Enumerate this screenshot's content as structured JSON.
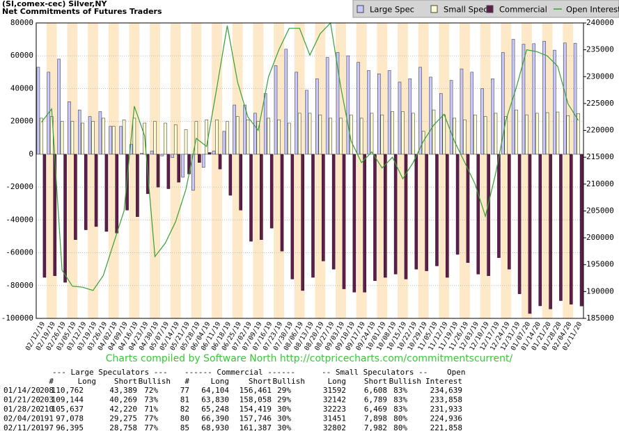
{
  "chart_data": {
    "type": "bar",
    "title": "(SI,comex-cec) Silver,NY",
    "subtitle": "Net Commitments of Futures Traders",
    "categories": [
      "02/12/19",
      "02/19/19",
      "02/26/19",
      "03/05/19",
      "03/12/19",
      "03/19/19",
      "03/26/19",
      "04/02/19",
      "04/09/19",
      "04/16/19",
      "04/23/19",
      "04/30/19",
      "05/07/19",
      "05/14/19",
      "05/21/19",
      "05/28/19",
      "06/04/19",
      "06/11/19",
      "06/18/19",
      "06/25/19",
      "07/02/19",
      "07/09/19",
      "07/16/19",
      "07/23/19",
      "07/30/19",
      "08/06/19",
      "08/13/19",
      "08/20/19",
      "08/27/19",
      "09/03/19",
      "09/10/19",
      "09/17/19",
      "09/24/19",
      "10/01/19",
      "10/08/19",
      "10/15/19",
      "10/22/19",
      "10/29/19",
      "11/05/19",
      "11/12/19",
      "11/19/19",
      "11/26/19",
      "12/03/19",
      "12/10/19",
      "12/17/19",
      "12/24/19",
      "12/31/19",
      "01/07/20",
      "01/14/20",
      "01/21/20",
      "01/28/20",
      "02/04/20",
      "02/11/20"
    ],
    "series": [
      {
        "name": "Large Spec",
        "color": "#c8c8ff",
        "values": [
          53000,
          50000,
          58000,
          32000,
          27000,
          23000,
          26000,
          17000,
          17000,
          6000,
          500,
          2000,
          -1000,
          -2000,
          -14000,
          -22000,
          -8000,
          2000,
          14000,
          30000,
          30000,
          25000,
          37000,
          54000,
          64000,
          50000,
          39000,
          46000,
          59000,
          62000,
          60000,
          56000,
          51000,
          49000,
          51000,
          44000,
          46000,
          53000,
          47000,
          37000,
          45000,
          52000,
          50000,
          40000,
          46000,
          62000,
          70000,
          67000,
          67373,
          68875,
          63417,
          67803,
          67637
        ]
      },
      {
        "name": "Small Spec",
        "color": "#ffffd2",
        "values": [
          22000,
          23000,
          20000,
          20000,
          19000,
          20000,
          22000,
          17000,
          21000,
          22000,
          19000,
          20000,
          19000,
          18000,
          15000,
          20000,
          21000,
          21000,
          20000,
          23000,
          21000,
          20000,
          22000,
          21000,
          19000,
          25000,
          25000,
          24000,
          22000,
          22000,
          24000,
          22000,
          25000,
          24000,
          26000,
          26000,
          25000,
          14000,
          27000,
          24000,
          22000,
          21000,
          24000,
          23000,
          25000,
          23000,
          27000,
          24000,
          24984,
          25353,
          25754,
          23553,
          24820
        ]
      },
      {
        "name": "Commercial",
        "color": "#5c1f4a",
        "values": [
          -75000,
          -74000,
          -78000,
          -52000,
          -46000,
          -44000,
          -47000,
          -48000,
          -34000,
          -38000,
          -24000,
          -20000,
          -21000,
          -17000,
          -12000,
          -5000,
          1000,
          -9000,
          -25000,
          -34000,
          -53000,
          -52000,
          -45000,
          -59000,
          -76000,
          -83000,
          -75000,
          -65000,
          -70000,
          -82000,
          -84000,
          -84000,
          -77000,
          -75000,
          -73000,
          -76000,
          -70000,
          -71000,
          -68000,
          -75000,
          -61000,
          -66000,
          -73000,
          -74000,
          -63000,
          -70000,
          -85000,
          -97000,
          -92357,
          -94228,
          -89171,
          -91356,
          -92457
        ]
      },
      {
        "name": "Open Interest",
        "color": "#33a033",
        "type": "line",
        "axis": "y2",
        "values": [
          221500,
          224000,
          194000,
          191000,
          190800,
          190200,
          193000,
          199000,
          205000,
          224500,
          219000,
          196500,
          199000,
          203000,
          209000,
          218500,
          217000,
          228000,
          239500,
          229000,
          222500,
          220000,
          230000,
          235000,
          239000,
          239000,
          234000,
          238000,
          240000,
          228000,
          218000,
          214000,
          216000,
          213000,
          215000,
          211000,
          214000,
          218000,
          221000,
          223000,
          218000,
          214000,
          210000,
          204000,
          212000,
          222000,
          228000,
          235000,
          234639,
          233858,
          231933,
          224936,
          221858
        ]
      }
    ],
    "ylim": [
      -100000,
      80000
    ],
    "yticks": [
      -100000,
      -80000,
      -60000,
      -40000,
      -20000,
      0,
      20000,
      40000,
      60000,
      80000
    ],
    "y2lim": [
      185000,
      240000
    ],
    "y2ticks": [
      185000,
      190000,
      195000,
      200000,
      205000,
      210000,
      215000,
      220000,
      225000,
      230000,
      235000,
      240000
    ],
    "legend": "top-right",
    "footer": "Charts compiled by Software North  http://cotpricecharts.com/commitmentscurrent/"
  },
  "table": {
    "group_headers": [
      "--- Large Speculators ---",
      "------ Commercial ------",
      "-- Small Speculators --",
      "Open"
    ],
    "headers": [
      "#",
      "Long",
      "Short",
      "Bullish",
      "#",
      "Long",
      "Short",
      "Bullish",
      "Long",
      "Short",
      "Bullish",
      "Interest"
    ],
    "rows": [
      [
        "01/14/20",
        "208",
        "110,762",
        "43,389",
        "72%",
        "77",
        "64,104",
        "156,461",
        "29%",
        "31592",
        "6,608",
        "83%",
        "234,639"
      ],
      [
        "01/21/20",
        "203",
        "109,144",
        "40,269",
        "73%",
        "81",
        "63,830",
        "158,058",
        "29%",
        "32142",
        "6,789",
        "83%",
        "233,858"
      ],
      [
        "01/28/20",
        "210",
        "105,637",
        "42,220",
        "71%",
        "82",
        "65,248",
        "154,419",
        "30%",
        "32223",
        "6,469",
        "83%",
        "231,933"
      ],
      [
        "02/04/20",
        "191",
        "97,078",
        "29,275",
        "77%",
        "80",
        "66,390",
        "157,746",
        "30%",
        "31451",
        "7,898",
        "80%",
        "224,936"
      ],
      [
        "02/11/20",
        "197",
        "96,395",
        "28,758",
        "77%",
        "85",
        "68,930",
        "161,387",
        "30%",
        "32802",
        "7,982",
        "80%",
        "221,858"
      ]
    ]
  }
}
